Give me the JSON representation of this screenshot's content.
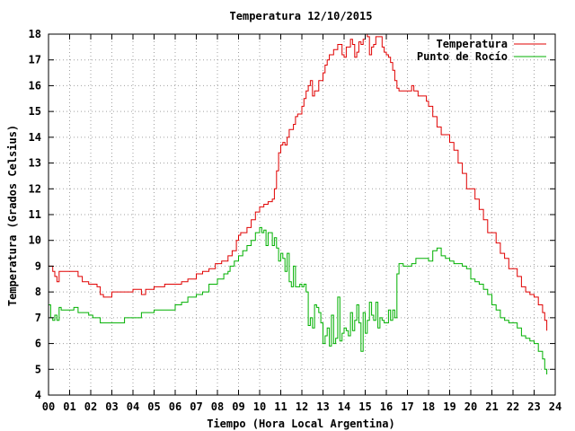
{
  "chart_data": {
    "type": "line",
    "title": "Temperatura 12/10/2015",
    "xlabel": "Tiempo (Hora Local Argentina)",
    "ylabel": "Temperatura (Grados Celsius)",
    "xlim": [
      0,
      24
    ],
    "ylim": [
      4,
      18
    ],
    "x_ticks": [
      "00",
      "01",
      "02",
      "03",
      "04",
      "05",
      "06",
      "07",
      "08",
      "09",
      "10",
      "11",
      "12",
      "13",
      "14",
      "15",
      "16",
      "17",
      "18",
      "19",
      "20",
      "21",
      "22",
      "23",
      "24"
    ],
    "y_ticks": [
      4,
      5,
      6,
      7,
      8,
      9,
      10,
      11,
      12,
      13,
      14,
      15,
      16,
      17,
      18
    ],
    "grid": true,
    "legend_position": "top-right",
    "series": [
      {
        "name": "Temperatura",
        "color": "#e00000",
        "x": [
          0,
          0.2,
          0.3,
          0.4,
          0.5,
          0.6,
          1.0,
          1.4,
          1.6,
          1.9,
          2.1,
          2.3,
          2.45,
          2.6,
          3.0,
          3.5,
          4.0,
          4.3,
          4.4,
          4.6,
          5.0,
          5.5,
          6.0,
          6.3,
          6.6,
          7.0,
          7.3,
          7.6,
          7.9,
          8.2,
          8.5,
          8.7,
          8.9,
          9.0,
          9.1,
          9.2,
          9.4,
          9.6,
          9.8,
          10.0,
          10.2,
          10.4,
          10.6,
          10.7,
          10.8,
          10.9,
          11.0,
          11.1,
          11.2,
          11.3,
          11.4,
          11.5,
          11.6,
          11.7,
          11.8,
          12.0,
          12.1,
          12.2,
          12.3,
          12.4,
          12.5,
          12.6,
          12.7,
          12.8,
          12.9,
          13.0,
          13.1,
          13.2,
          13.3,
          13.5,
          13.7,
          13.9,
          14.0,
          14.1,
          14.2,
          14.3,
          14.4,
          14.5,
          14.6,
          14.7,
          14.8,
          14.9,
          15.0,
          15.1,
          15.2,
          15.3,
          15.4,
          15.5,
          15.6,
          15.7,
          15.8,
          15.9,
          16.0,
          16.1,
          16.2,
          16.3,
          16.4,
          16.5,
          16.6,
          16.8,
          17.0,
          17.2,
          17.3,
          17.5,
          17.7,
          17.9,
          18.0,
          18.2,
          18.4,
          18.6,
          18.8,
          19.0,
          19.2,
          19.4,
          19.6,
          19.8,
          20.0,
          20.2,
          20.4,
          20.6,
          20.8,
          21.0,
          21.2,
          21.4,
          21.6,
          21.8,
          22.0,
          22.2,
          22.4,
          22.6,
          22.8,
          23.0,
          23.2,
          23.4,
          23.5,
          23.6
        ],
        "values": [
          9.0,
          8.8,
          8.6,
          8.4,
          8.8,
          8.8,
          8.8,
          8.6,
          8.4,
          8.3,
          8.3,
          8.2,
          7.9,
          7.8,
          8.0,
          8.0,
          8.1,
          8.1,
          7.9,
          8.1,
          8.2,
          8.3,
          8.3,
          8.4,
          8.5,
          8.7,
          8.8,
          8.9,
          9.1,
          9.2,
          9.4,
          9.6,
          10.0,
          10.2,
          10.3,
          10.3,
          10.5,
          10.8,
          11.1,
          11.3,
          11.4,
          11.5,
          11.6,
          12.0,
          12.7,
          13.4,
          13.7,
          13.8,
          13.7,
          14.0,
          14.3,
          14.3,
          14.5,
          14.8,
          14.9,
          15.2,
          15.5,
          15.8,
          16.0,
          16.2,
          15.6,
          15.8,
          15.8,
          16.2,
          16.2,
          16.5,
          16.8,
          17.0,
          17.2,
          17.4,
          17.6,
          17.2,
          17.1,
          17.5,
          17.5,
          17.8,
          17.6,
          17.1,
          17.3,
          17.7,
          17.6,
          17.8,
          18.0,
          17.9,
          17.2,
          17.5,
          17.6,
          17.9,
          17.9,
          17.9,
          17.5,
          17.3,
          17.2,
          17.1,
          16.9,
          16.6,
          16.2,
          15.9,
          15.8,
          15.8,
          15.8,
          16.0,
          15.8,
          15.6,
          15.6,
          15.4,
          15.2,
          14.8,
          14.4,
          14.1,
          14.1,
          13.8,
          13.5,
          13.0,
          12.6,
          12.0,
          12.0,
          11.6,
          11.2,
          10.8,
          10.3,
          10.3,
          9.9,
          9.5,
          9.3,
          8.9,
          8.9,
          8.6,
          8.2,
          8.0,
          7.9,
          7.8,
          7.5,
          7.2,
          6.9,
          6.5
        ]
      },
      {
        "name": "Punto de Rocío",
        "color": "#00b000",
        "x": [
          0,
          0.1,
          0.2,
          0.3,
          0.4,
          0.5,
          0.6,
          1.0,
          1.2,
          1.4,
          1.6,
          1.9,
          2.1,
          2.3,
          2.45,
          2.6,
          3.0,
          3.3,
          3.6,
          4.0,
          4.3,
          4.4,
          4.5,
          4.8,
          5.0,
          5.5,
          6.0,
          6.3,
          6.6,
          7.0,
          7.3,
          7.6,
          8.0,
          8.3,
          8.5,
          8.6,
          8.8,
          9.0,
          9.2,
          9.4,
          9.6,
          9.8,
          10.0,
          10.1,
          10.2,
          10.3,
          10.4,
          10.5,
          10.6,
          10.7,
          10.8,
          10.9,
          11.0,
          11.1,
          11.2,
          11.3,
          11.4,
          11.5,
          11.6,
          11.7,
          11.8,
          11.9,
          12.0,
          12.1,
          12.2,
          12.3,
          12.4,
          12.5,
          12.6,
          12.7,
          12.8,
          12.9,
          13.0,
          13.1,
          13.2,
          13.3,
          13.4,
          13.5,
          13.6,
          13.7,
          13.8,
          13.9,
          14.0,
          14.1,
          14.2,
          14.3,
          14.4,
          14.5,
          14.6,
          14.7,
          14.8,
          14.9,
          15.0,
          15.1,
          15.2,
          15.3,
          15.4,
          15.5,
          15.6,
          15.7,
          15.8,
          15.9,
          16.0,
          16.1,
          16.2,
          16.3,
          16.4,
          16.5,
          16.6,
          16.8,
          17.0,
          17.2,
          17.4,
          17.6,
          17.8,
          18.0,
          18.2,
          18.4,
          18.6,
          18.8,
          19.0,
          19.2,
          19.4,
          19.6,
          19.8,
          20.0,
          20.2,
          20.4,
          20.6,
          20.8,
          21.0,
          21.2,
          21.4,
          21.6,
          21.8,
          22.0,
          22.2,
          22.4,
          22.6,
          22.8,
          23.0,
          23.2,
          23.4,
          23.5,
          23.6
        ],
        "values": [
          7.5,
          7.0,
          6.9,
          7.1,
          6.9,
          7.4,
          7.3,
          7.3,
          7.4,
          7.2,
          7.2,
          7.1,
          7.0,
          7.0,
          6.8,
          6.8,
          6.8,
          6.8,
          7.0,
          7.0,
          7.0,
          7.2,
          7.2,
          7.2,
          7.3,
          7.3,
          7.5,
          7.6,
          7.8,
          7.9,
          8.0,
          8.3,
          8.5,
          8.7,
          8.8,
          9.0,
          9.2,
          9.4,
          9.6,
          9.8,
          10.0,
          10.3,
          10.5,
          10.3,
          10.4,
          9.8,
          10.3,
          10.3,
          9.8,
          10.1,
          9.7,
          9.2,
          9.5,
          9.3,
          8.8,
          9.5,
          8.4,
          8.2,
          9.0,
          8.2,
          8.2,
          8.3,
          8.2,
          8.3,
          8.0,
          6.7,
          7.0,
          6.6,
          7.5,
          7.4,
          7.2,
          6.8,
          6.0,
          6.3,
          6.6,
          5.9,
          7.1,
          6.0,
          6.2,
          7.8,
          6.1,
          6.4,
          6.6,
          6.5,
          6.3,
          7.2,
          6.5,
          6.9,
          7.5,
          6.8,
          5.7,
          7.2,
          6.4,
          6.9,
          7.6,
          7.1,
          6.9,
          7.6,
          6.6,
          7.0,
          6.9,
          6.8,
          6.8,
          7.3,
          6.9,
          7.3,
          7.0,
          8.7,
          9.1,
          9.0,
          9.0,
          9.1,
          9.3,
          9.3,
          9.3,
          9.2,
          9.6,
          9.7,
          9.4,
          9.3,
          9.2,
          9.1,
          9.1,
          9.0,
          8.9,
          8.5,
          8.4,
          8.3,
          8.1,
          7.9,
          7.5,
          7.3,
          7.0,
          6.9,
          6.8,
          6.8,
          6.6,
          6.3,
          6.2,
          6.1,
          6.0,
          5.7,
          5.4,
          5.0,
          4.8
        ]
      }
    ]
  }
}
